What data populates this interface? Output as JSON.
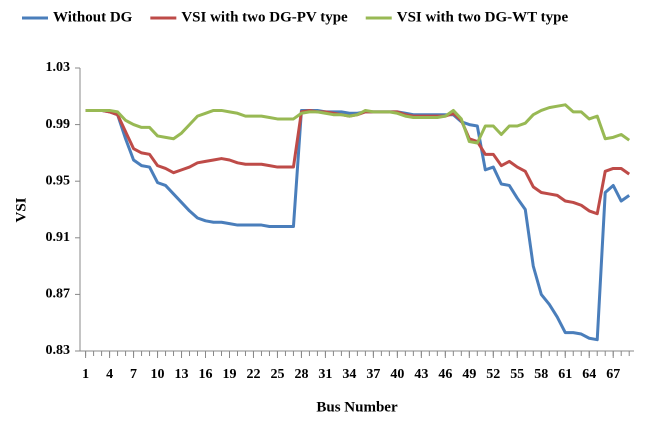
{
  "chart_data": {
    "type": "line",
    "xlabel": "Bus Number",
    "ylabel": "VSI",
    "x": [
      1,
      2,
      3,
      4,
      5,
      6,
      7,
      8,
      9,
      10,
      11,
      12,
      13,
      14,
      15,
      16,
      17,
      18,
      19,
      20,
      21,
      22,
      23,
      24,
      25,
      26,
      27,
      28,
      29,
      30,
      31,
      32,
      33,
      34,
      35,
      36,
      37,
      38,
      39,
      40,
      41,
      42,
      43,
      44,
      45,
      46,
      47,
      48,
      49,
      50,
      51,
      52,
      53,
      54,
      55,
      56,
      57,
      58,
      59,
      60,
      61,
      62,
      63,
      64,
      65,
      66,
      67,
      68,
      69
    ],
    "xlim": [
      0.3,
      69.6
    ],
    "xticks": [
      1,
      4,
      7,
      10,
      13,
      16,
      19,
      22,
      25,
      28,
      31,
      34,
      37,
      40,
      43,
      46,
      49,
      52,
      55,
      58,
      61,
      64,
      67
    ],
    "ylim": [
      0.83,
      1.03
    ],
    "yticks": [
      0.83,
      0.87,
      0.91,
      0.95,
      0.99,
      1.03
    ],
    "grid": false,
    "legend": "top",
    "series": [
      {
        "name": "Without DG",
        "color": "#4a7ebb",
        "values": [
          1.0,
          1.0,
          1.0,
          0.999,
          0.997,
          0.98,
          0.965,
          0.961,
          0.96,
          0.949,
          0.947,
          0.941,
          0.935,
          0.929,
          0.924,
          0.922,
          0.921,
          0.921,
          0.92,
          0.919,
          0.919,
          0.919,
          0.919,
          0.918,
          0.918,
          0.918,
          0.918,
          1.0,
          1.0,
          1.0,
          0.999,
          0.999,
          0.999,
          0.998,
          0.998,
          0.999,
          0.999,
          0.999,
          0.999,
          0.999,
          0.998,
          0.997,
          0.997,
          0.997,
          0.997,
          0.997,
          0.997,
          0.992,
          0.99,
          0.989,
          0.958,
          0.96,
          0.948,
          0.947,
          0.938,
          0.93,
          0.89,
          0.87,
          0.863,
          0.854,
          0.843,
          0.843,
          0.842,
          0.839,
          0.838,
          0.942,
          0.947,
          0.936,
          0.94
        ]
      },
      {
        "name": "VSI with two DG-PV type",
        "color": "#be4b48",
        "values": [
          1.0,
          1.0,
          1.0,
          0.999,
          0.997,
          0.985,
          0.973,
          0.97,
          0.969,
          0.961,
          0.959,
          0.956,
          0.958,
          0.96,
          0.963,
          0.964,
          0.965,
          0.966,
          0.965,
          0.963,
          0.962,
          0.962,
          0.962,
          0.961,
          0.96,
          0.96,
          0.96,
          0.999,
          1.0,
          0.999,
          0.999,
          0.998,
          0.997,
          0.996,
          0.997,
          0.999,
          0.999,
          0.999,
          0.999,
          0.999,
          0.997,
          0.996,
          0.996,
          0.996,
          0.996,
          0.996,
          0.998,
          0.993,
          0.98,
          0.978,
          0.969,
          0.969,
          0.961,
          0.964,
          0.96,
          0.957,
          0.946,
          0.942,
          0.941,
          0.94,
          0.936,
          0.935,
          0.933,
          0.929,
          0.927,
          0.957,
          0.959,
          0.959,
          0.955
        ]
      },
      {
        "name": "VSI with two DG-WT type",
        "color": "#98b954",
        "values": [
          1.0,
          1.0,
          1.0,
          1.0,
          0.999,
          0.993,
          0.99,
          0.988,
          0.988,
          0.982,
          0.981,
          0.98,
          0.984,
          0.99,
          0.996,
          0.998,
          1.0,
          1.0,
          0.999,
          0.998,
          0.996,
          0.996,
          0.996,
          0.995,
          0.994,
          0.994,
          0.994,
          0.998,
          0.999,
          0.999,
          0.998,
          0.997,
          0.997,
          0.996,
          0.997,
          1.0,
          0.999,
          0.999,
          0.999,
          0.998,
          0.996,
          0.995,
          0.995,
          0.995,
          0.995,
          0.996,
          1.0,
          0.994,
          0.978,
          0.977,
          0.989,
          0.989,
          0.983,
          0.989,
          0.989,
          0.991,
          0.997,
          1.0,
          1.002,
          1.003,
          1.004,
          0.999,
          0.999,
          0.994,
          0.996,
          0.98,
          0.981,
          0.983,
          0.979
        ]
      }
    ]
  }
}
